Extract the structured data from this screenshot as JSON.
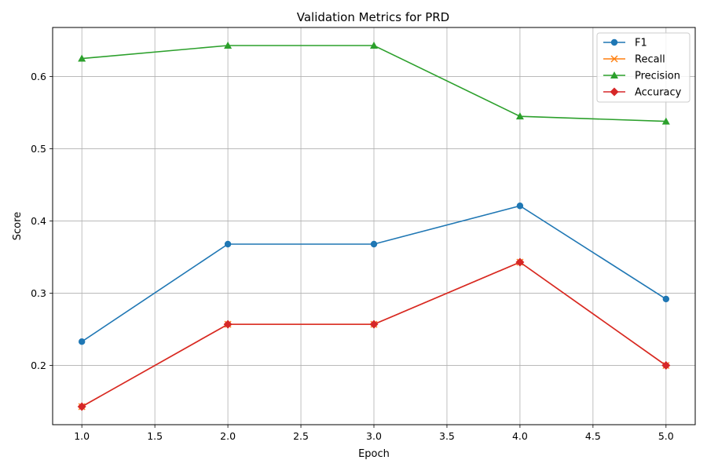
{
  "chart_data": {
    "type": "line",
    "title": "Validation Metrics for PRD",
    "xlabel": "Epoch",
    "ylabel": "Score",
    "xlim": [
      0.8,
      5.2
    ],
    "ylim": [
      0.118,
      0.668
    ],
    "x_ticks": [
      1.0,
      1.5,
      2.0,
      2.5,
      3.0,
      3.5,
      4.0,
      4.5,
      5.0
    ],
    "x_tick_labels": [
      "1.0",
      "1.5",
      "2.0",
      "2.5",
      "3.0",
      "3.5",
      "4.0",
      "4.5",
      "5.0"
    ],
    "y_ticks": [
      0.2,
      0.3,
      0.4,
      0.5,
      0.6
    ],
    "y_tick_labels": [
      "0.2",
      "0.3",
      "0.4",
      "0.5",
      "0.6"
    ],
    "grid": true,
    "legend_position": "top-right",
    "x": [
      1,
      2,
      3,
      4,
      5
    ],
    "series": [
      {
        "name": "F1",
        "values": [
          0.233,
          0.368,
          0.368,
          0.421,
          0.292
        ],
        "color": "#1f77b4",
        "marker": "circle"
      },
      {
        "name": "Recall",
        "values": [
          0.143,
          0.257,
          0.257,
          0.343,
          0.2
        ],
        "color": "#ff7f0e",
        "marker": "x"
      },
      {
        "name": "Precision",
        "values": [
          0.625,
          0.643,
          0.643,
          0.545,
          0.538
        ],
        "color": "#2ca02c",
        "marker": "triangle"
      },
      {
        "name": "Accuracy",
        "values": [
          0.143,
          0.257,
          0.257,
          0.343,
          0.2
        ],
        "color": "#d62728",
        "marker": "diamond"
      }
    ]
  }
}
